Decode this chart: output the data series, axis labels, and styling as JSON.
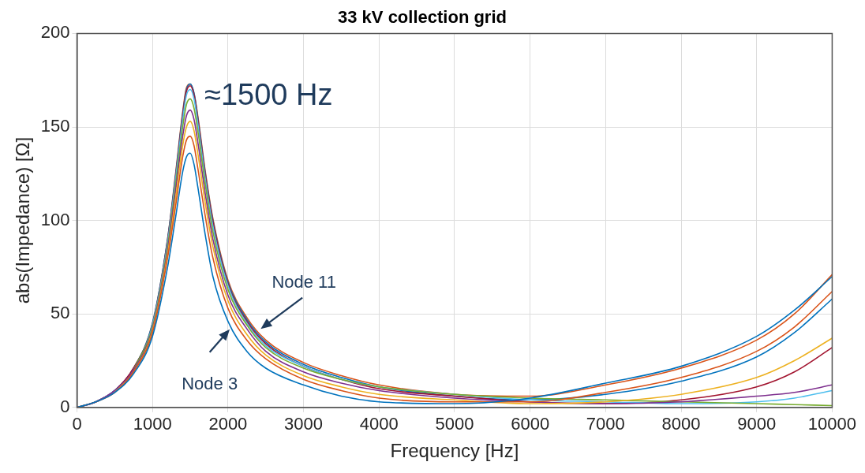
{
  "chart_data": {
    "type": "line",
    "title": "33 kV collection grid",
    "xlabel": "Frequency [Hz]",
    "ylabel": "abs(Impedance) [Ω]",
    "x": [
      0,
      250,
      500,
      750,
      1000,
      1200,
      1300,
      1400,
      1450,
      1500,
      1550,
      1600,
      1700,
      1800,
      2000,
      2250,
      2500,
      3000,
      3500,
      4000,
      5000,
      6000,
      7000,
      8000,
      9000,
      9500,
      10000
    ],
    "series": [
      {
        "color": "#0072bd",
        "values": [
          0,
          3,
          8,
          18,
          38,
          75,
          100,
          126,
          134,
          136,
          130,
          118,
          92,
          70,
          46,
          30,
          21,
          12,
          6,
          3,
          2,
          5,
          13,
          22,
          38,
          52,
          70
        ]
      },
      {
        "color": "#d95319",
        "values": [
          0,
          3,
          8,
          19,
          40,
          80,
          106,
          134,
          143,
          145,
          140,
          128,
          102,
          80,
          53,
          36,
          26,
          15,
          9,
          5,
          3,
          3,
          8,
          16,
          30,
          43,
          62
        ]
      },
      {
        "color": "#edb120",
        "values": [
          null,
          null,
          8,
          19,
          41,
          82,
          110,
          140,
          150,
          153,
          148,
          136,
          109,
          86,
          57,
          39,
          28,
          17,
          11,
          7,
          4,
          2,
          3,
          7,
          16,
          25,
          37
        ]
      },
      {
        "color": "#7e2f8e",
        "values": [
          0,
          3,
          9,
          20,
          42,
          84,
          114,
          145,
          156,
          159,
          154,
          142,
          114,
          90,
          60,
          42,
          30,
          19,
          13,
          9,
          5,
          3,
          2,
          3,
          6,
          8,
          12
        ]
      },
      {
        "color": "#77ac30",
        "values": [
          null,
          null,
          null,
          20,
          43,
          86,
          117,
          150,
          162,
          165,
          160,
          148,
          119,
          94,
          63,
          44,
          32,
          21,
          15,
          11,
          7,
          5,
          4,
          3,
          2,
          1.5,
          1
        ]
      },
      {
        "color": "#4dbeee",
        "values": [
          0,
          3,
          9,
          20,
          44,
          88,
          120,
          154,
          167,
          170,
          165,
          152,
          122,
          97,
          65,
          45,
          33,
          22,
          15,
          11,
          7,
          4,
          3,
          2,
          3,
          5,
          9
        ]
      },
      {
        "color": "#a2142f",
        "values": [
          0,
          3,
          9,
          21,
          44,
          89,
          121,
          156,
          169,
          172,
          167,
          154,
          124,
          99,
          66,
          46,
          34,
          22,
          15,
          10,
          6,
          3,
          2,
          4,
          11,
          19,
          32
        ]
      },
      {
        "color": "#0072bd",
        "values": [
          0,
          3,
          9,
          21,
          45,
          90,
          122,
          157,
          170,
          173,
          168,
          155,
          125,
          100,
          67,
          47,
          35,
          23,
          16,
          11,
          6,
          4,
          7,
          14,
          27,
          40,
          58
        ]
      },
      {
        "color": "#d95319",
        "values": [
          0,
          3,
          9,
          21,
          45,
          90,
          123,
          158,
          171,
          173,
          168,
          156,
          126,
          101,
          68,
          48,
          36,
          24,
          17,
          12,
          7,
          6,
          12,
          21,
          36,
          50,
          71
        ]
      }
    ],
    "xlim": [
      0,
      10000
    ],
    "xticks": [
      0,
      1000,
      2000,
      3000,
      4000,
      5000,
      6000,
      7000,
      8000,
      9000,
      10000
    ],
    "ylim": [
      0,
      200
    ],
    "yticks": [
      0,
      50,
      100,
      150,
      200
    ],
    "grid": true,
    "legend": false,
    "marker": "none",
    "line_style": "solid",
    "annotations": [
      {
        "text": "≈1500 Hz",
        "x": 1500,
        "y": 173
      },
      {
        "text": "Node 11",
        "x": 2400,
        "y": 41
      },
      {
        "text": "Node 3",
        "x": 2050,
        "y": 43
      }
    ]
  }
}
